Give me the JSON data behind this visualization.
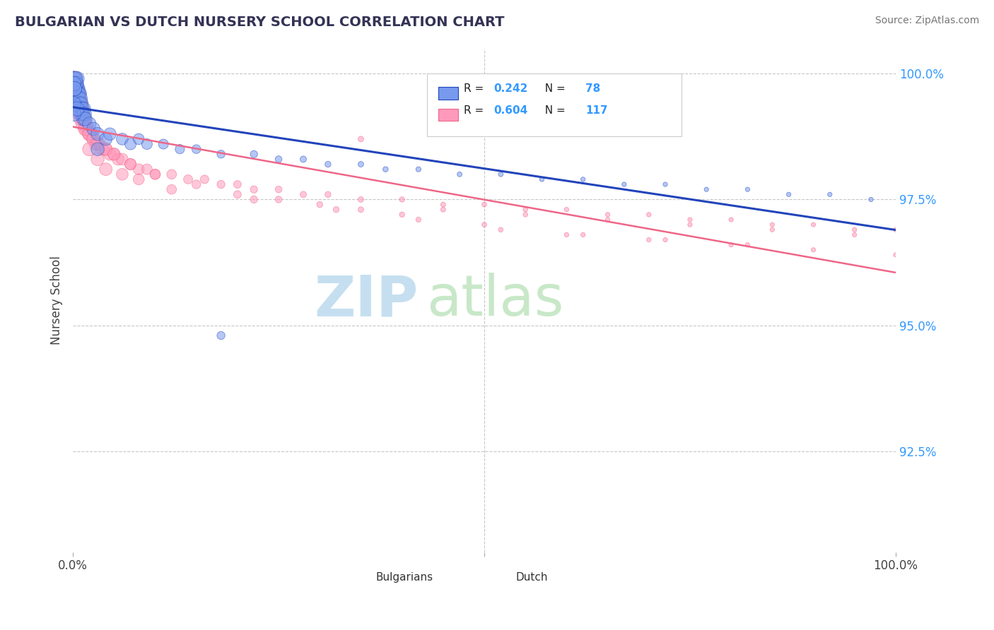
{
  "title": "BULGARIAN VS DUTCH NURSERY SCHOOL CORRELATION CHART",
  "source_text": "Source: ZipAtlas.com",
  "ylabel": "Nursery School",
  "xlim": [
    0,
    1.0
  ],
  "ylim": [
    0.905,
    1.005
  ],
  "yticks": [
    0.925,
    0.95,
    0.975,
    1.0
  ],
  "ytick_labels": [
    "92.5%",
    "95.0%",
    "97.5%",
    "100.0%"
  ],
  "bg_color": "#ffffff",
  "grid_color": "#c8c8c8",
  "bulgarian_color": "#7799ee",
  "dutch_color": "#ff99bb",
  "blue_line_color": "#2244bb",
  "pink_line_color": "#ee6688",
  "legend_R_bulgarian": "0.242",
  "legend_N_bulgarian": "78",
  "legend_R_dutch": "0.604",
  "legend_N_dutch": "117",
  "watermark_zip": "ZIP",
  "watermark_atlas": "atlas",
  "watermark_color_zip": "#c5dff0",
  "watermark_color_atlas": "#c8e8c8",
  "bulgarians_label": "Bulgarians",
  "dutch_label": "Dutch",
  "bulgarian_points_x": [
    0.001,
    0.001,
    0.001,
    0.001,
    0.001,
    0.002,
    0.002,
    0.002,
    0.002,
    0.003,
    0.003,
    0.003,
    0.003,
    0.004,
    0.004,
    0.004,
    0.005,
    0.005,
    0.005,
    0.006,
    0.006,
    0.006,
    0.007,
    0.007,
    0.008,
    0.008,
    0.009,
    0.009,
    0.01,
    0.01,
    0.011,
    0.012,
    0.013,
    0.013,
    0.014,
    0.015,
    0.02,
    0.025,
    0.03,
    0.04,
    0.045,
    0.06,
    0.07,
    0.08,
    0.09,
    0.11,
    0.13,
    0.15,
    0.18,
    0.22,
    0.25,
    0.28,
    0.31,
    0.35,
    0.38,
    0.42,
    0.47,
    0.52,
    0.57,
    0.62,
    0.67,
    0.72,
    0.77,
    0.82,
    0.87,
    0.92,
    0.97,
    0.18,
    0.03,
    0.005,
    0.004,
    0.003,
    0.002,
    0.001,
    0.001,
    0.001,
    0.002,
    0.005
  ],
  "bulgarian_points_y": [
    0.999,
    0.998,
    0.997,
    0.998,
    0.996,
    0.999,
    0.998,
    0.997,
    0.996,
    0.998,
    0.997,
    0.996,
    0.995,
    0.998,
    0.997,
    0.996,
    0.997,
    0.996,
    0.995,
    0.997,
    0.996,
    0.995,
    0.996,
    0.995,
    0.996,
    0.994,
    0.995,
    0.993,
    0.994,
    0.992,
    0.993,
    0.992,
    0.993,
    0.991,
    0.992,
    0.991,
    0.99,
    0.989,
    0.988,
    0.987,
    0.988,
    0.987,
    0.986,
    0.987,
    0.986,
    0.986,
    0.985,
    0.985,
    0.984,
    0.984,
    0.983,
    0.983,
    0.982,
    0.982,
    0.981,
    0.981,
    0.98,
    0.98,
    0.979,
    0.979,
    0.978,
    0.978,
    0.977,
    0.977,
    0.976,
    0.976,
    0.975,
    0.948,
    0.985,
    0.999,
    0.998,
    0.999,
    0.997,
    0.998,
    0.994,
    0.992,
    0.997,
    0.993
  ],
  "dutch_points_x": [
    0.001,
    0.001,
    0.001,
    0.002,
    0.002,
    0.002,
    0.003,
    0.003,
    0.003,
    0.004,
    0.004,
    0.004,
    0.005,
    0.005,
    0.005,
    0.006,
    0.006,
    0.007,
    0.007,
    0.008,
    0.008,
    0.009,
    0.01,
    0.01,
    0.011,
    0.012,
    0.013,
    0.014,
    0.015,
    0.016,
    0.018,
    0.02,
    0.022,
    0.025,
    0.028,
    0.032,
    0.036,
    0.04,
    0.045,
    0.05,
    0.055,
    0.06,
    0.07,
    0.08,
    0.09,
    0.1,
    0.12,
    0.14,
    0.16,
    0.18,
    0.2,
    0.22,
    0.25,
    0.28,
    0.31,
    0.35,
    0.4,
    0.45,
    0.5,
    0.55,
    0.6,
    0.65,
    0.7,
    0.75,
    0.8,
    0.85,
    0.9,
    0.95,
    1.0,
    0.003,
    0.004,
    0.005,
    0.006,
    0.007,
    0.008,
    0.01,
    0.012,
    0.015,
    0.02,
    0.025,
    0.03,
    0.04,
    0.05,
    0.07,
    0.1,
    0.15,
    0.2,
    0.25,
    0.3,
    0.35,
    0.4,
    0.5,
    0.6,
    0.7,
    0.8,
    0.9,
    1.0,
    0.45,
    0.55,
    0.65,
    0.75,
    0.85,
    0.95,
    0.72,
    0.62,
    0.82,
    0.52,
    0.42,
    0.32,
    0.22,
    0.12,
    0.08,
    0.06,
    0.04,
    0.03,
    0.02,
    0.35
  ],
  "dutch_points_y": [
    0.999,
    0.998,
    0.997,
    0.999,
    0.998,
    0.997,
    0.998,
    0.997,
    0.996,
    0.998,
    0.997,
    0.995,
    0.997,
    0.996,
    0.994,
    0.996,
    0.995,
    0.996,
    0.994,
    0.995,
    0.993,
    0.994,
    0.994,
    0.992,
    0.993,
    0.992,
    0.991,
    0.991,
    0.99,
    0.989,
    0.989,
    0.988,
    0.988,
    0.987,
    0.986,
    0.986,
    0.985,
    0.985,
    0.984,
    0.984,
    0.983,
    0.983,
    0.982,
    0.981,
    0.981,
    0.98,
    0.98,
    0.979,
    0.979,
    0.978,
    0.978,
    0.977,
    0.977,
    0.976,
    0.976,
    0.975,
    0.975,
    0.974,
    0.974,
    0.973,
    0.973,
    0.972,
    0.972,
    0.971,
    0.971,
    0.97,
    0.97,
    0.969,
    0.969,
    0.997,
    0.996,
    0.995,
    0.994,
    0.993,
    0.992,
    0.991,
    0.99,
    0.989,
    0.988,
    0.987,
    0.986,
    0.985,
    0.984,
    0.982,
    0.98,
    0.978,
    0.976,
    0.975,
    0.974,
    0.973,
    0.972,
    0.97,
    0.968,
    0.967,
    0.966,
    0.965,
    0.964,
    0.973,
    0.972,
    0.971,
    0.97,
    0.969,
    0.968,
    0.967,
    0.968,
    0.966,
    0.969,
    0.971,
    0.973,
    0.975,
    0.977,
    0.979,
    0.98,
    0.981,
    0.983,
    0.985,
    0.987
  ]
}
